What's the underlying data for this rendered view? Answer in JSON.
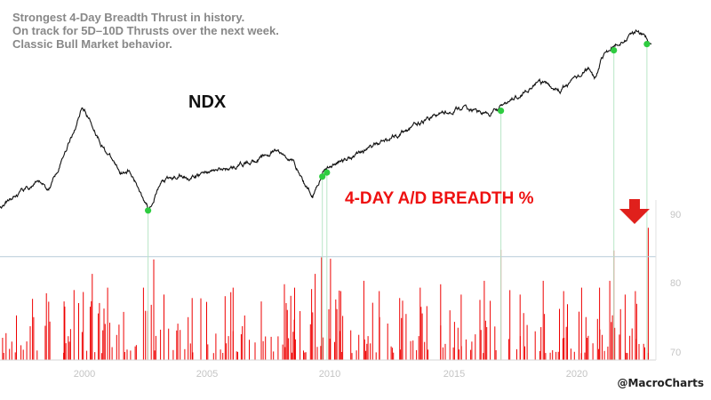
{
  "annotations": [
    "Strongest 4-Day Breadth Thrust in history.",
    "On track for 5D–10D Thrusts over the next week.",
    "Classic Bull Market behavior."
  ],
  "credit": "@MacroCharts",
  "colors": {
    "ndx_line": "#111111",
    "breadth_bars": "#ee0000",
    "thrust_dots": "#2ecc40",
    "threshold_line": "#b7cbd9",
    "arrow": "#e0201c",
    "label_red": "#ee1111",
    "connector": "#b9e6c7"
  },
  "chart_data": [
    {
      "type": "line",
      "series_label": "NDX",
      "x_range": [
        1997.0,
        2022.5
      ],
      "log_scale": true,
      "series": [
        {
          "name": "NDX",
          "x": [
            1997.0,
            1997.5,
            1998.0,
            1998.6,
            1998.9,
            1999.5,
            2000.0,
            2000.2,
            2000.5,
            2001.0,
            2001.7,
            2002.0,
            2002.5,
            2002.8,
            2003.3,
            2004.0,
            2004.6,
            2005.0,
            2006.0,
            2007.0,
            2007.8,
            2008.5,
            2008.9,
            2009.2,
            2009.6,
            2010.0,
            2011.0,
            2012.0,
            2013.0,
            2014.0,
            2015.0,
            2016.1,
            2016.5,
            2017.0,
            2018.0,
            2018.9,
            2019.5,
            2020.0,
            2020.2,
            2020.5,
            2021.0,
            2021.5,
            2021.9,
            2022.2,
            2022.4
          ],
          "y": [
            850,
            1000,
            1150,
            1300,
            1150,
            2100,
            3500,
            4700,
            3700,
            2400,
            1550,
            1600,
            1100,
            850,
            1300,
            1450,
            1400,
            1550,
            1650,
            1900,
            2200,
            1800,
            1250,
            1050,
            1550,
            1750,
            2150,
            2600,
            3200,
            4000,
            4500,
            4050,
            4500,
            5200,
            7000,
            6000,
            7500,
            8800,
            7200,
            10500,
            12700,
            14700,
            16500,
            14300,
            12700
          ]
        },
        {
          "name": "4-DAY A/D BREADTH %",
          "x": [
            1999.5,
            2000.6,
            2001.2,
            2002.6,
            2003.0,
            2003.4,
            2004.5,
            2006.1,
            2007.2,
            2008.1,
            2008.5,
            2009.3,
            2009.55,
            2009.9,
            2010.3,
            2011.2,
            2011.8,
            2012.6,
            2013.4,
            2014.2,
            2015.0,
            2015.9,
            2016.55,
            2017.3,
            2018.2,
            2019.0,
            2019.7,
            2020.4,
            2020.8,
            2020.96,
            2021.4,
            2021.8,
            2022.3
          ],
          "y": [
            78.5,
            82.5,
            80.5,
            80.5,
            84.6,
            79.5,
            79.0,
            80.5,
            78.5,
            81.0,
            80.5,
            82.5,
            84.9,
            84.7,
            80.0,
            81.5,
            80.0,
            79.0,
            80.5,
            81.0,
            79.5,
            81.5,
            86.0,
            79.5,
            81.5,
            80.0,
            80.5,
            80.5,
            81.5,
            85.9,
            79.5,
            80.0,
            89.2
          ]
        }
      ],
      "ylim_breadth": [
        70,
        90
      ],
      "breadth_ticks": [
        "90",
        "80",
        "70"
      ],
      "threshold": 85,
      "thrust_dates": [
        2002.78,
        2009.58,
        2009.76,
        2016.55,
        2020.96,
        2022.25
      ],
      "xticks": [
        "2000",
        "2005",
        "2010",
        "2015",
        "2020"
      ],
      "title": "4-DAY A/D BREADTH %",
      "legend": "none"
    }
  ]
}
